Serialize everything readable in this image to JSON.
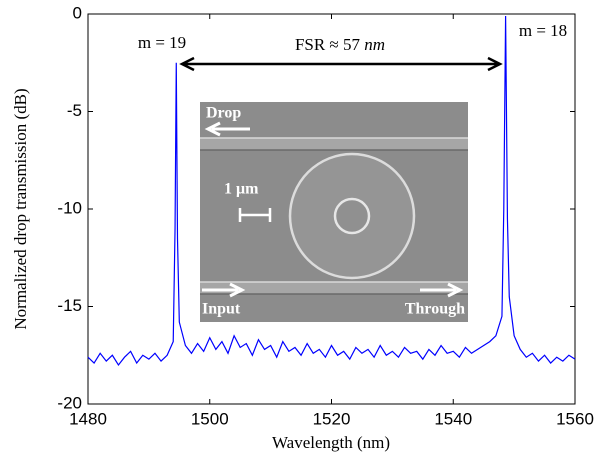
{
  "chart_data": {
    "type": "line",
    "x_label": "Wavelength (nm)",
    "y_label": "Normalized drop transmission (dB)",
    "annotations": [
      "m = 19",
      "m = 18"
    ],
    "fsr_label": {
      "text": "FSR ≈ 57",
      "unit": "nm"
    },
    "inset_labels": {
      "drop": "Drop",
      "scale": "1 μm",
      "input": "Input",
      "through": "Through"
    },
    "color": "#0000ff",
    "xlim": [
      1480,
      1560
    ],
    "xticks": [
      1480,
      1500,
      1520,
      1540,
      1560
    ],
    "ylim": [
      -20,
      0
    ],
    "yticks": [
      -20,
      -15,
      -10,
      -5,
      0
    ],
    "x": [
      1480,
      1481,
      1482,
      1483,
      1484,
      1485,
      1486,
      1487,
      1488,
      1489,
      1490,
      1491,
      1492,
      1493,
      1494,
      1494.3,
      1494.5,
      1494.7,
      1495,
      1496,
      1497,
      1498,
      1499,
      1500,
      1501,
      1502,
      1503,
      1504,
      1505,
      1506,
      1507,
      1508,
      1509,
      1510,
      1511,
      1512,
      1513,
      1514,
      1515,
      1516,
      1517,
      1518,
      1519,
      1520,
      1521,
      1522,
      1523,
      1524,
      1525,
      1526,
      1527,
      1528,
      1529,
      1530,
      1531,
      1532,
      1533,
      1534,
      1535,
      1536,
      1537,
      1538,
      1539,
      1540,
      1541,
      1542,
      1543,
      1544,
      1545,
      1546,
      1547,
      1548,
      1548.3,
      1548.6,
      1548.9,
      1549.2,
      1550,
      1551,
      1552,
      1553,
      1554,
      1555,
      1556,
      1557,
      1558,
      1559,
      1560
    ],
    "values": [
      -17.6,
      -17.9,
      -17.4,
      -17.8,
      -17.5,
      -18.0,
      -17.6,
      -17.3,
      -17.9,
      -17.5,
      -17.7,
      -17.4,
      -17.8,
      -17.5,
      -16.8,
      -11,
      -2.5,
      -11.5,
      -15.8,
      -17.0,
      -17.4,
      -16.9,
      -17.3,
      -16.6,
      -17.2,
      -16.8,
      -17.4,
      -16.5,
      -17.1,
      -16.9,
      -17.5,
      -16.7,
      -17.2,
      -17.0,
      -17.6,
      -16.8,
      -17.3,
      -17.1,
      -17.5,
      -16.9,
      -17.4,
      -17.2,
      -17.6,
      -17.0,
      -17.5,
      -17.3,
      -17.7,
      -17.1,
      -17.4,
      -17.2,
      -17.6,
      -17.0,
      -17.5,
      -17.3,
      -17.6,
      -17.1,
      -17.4,
      -17.3,
      -17.7,
      -17.2,
      -17.5,
      -17.0,
      -17.4,
      -17.3,
      -17.6,
      -17.1,
      -17.4,
      -17.2,
      -17.0,
      -16.8,
      -16.5,
      -15.5,
      -10,
      -0.1,
      -10.5,
      -14.5,
      -16.5,
      -17.2,
      -17.6,
      -17.4,
      -17.8,
      -17.5,
      -17.9,
      -17.6,
      -17.8,
      -17.5,
      -17.7
    ]
  }
}
